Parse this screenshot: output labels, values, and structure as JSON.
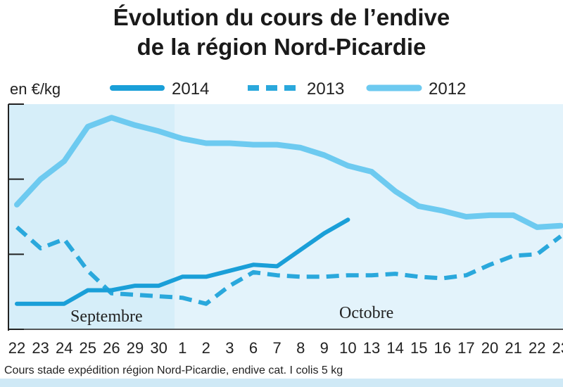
{
  "chart_data": {
    "type": "line",
    "title": [
      "Évolution du cours de l’endive",
      "de la région Nord-Picardie"
    ],
    "ylabel": "en €/kg",
    "ylim": [
      0.5,
      2.0
    ],
    "month_labels": [
      "Septembre",
      "Octobre"
    ],
    "x": [
      "22",
      "23",
      "24",
      "25",
      "26",
      "29",
      "30",
      "1",
      "2",
      "3",
      "6",
      "7",
      "8",
      "9",
      "10",
      "13",
      "14",
      "15",
      "16",
      "17",
      "20",
      "21",
      "22",
      "23"
    ],
    "series": [
      {
        "name": "2014",
        "style": "solid-thick",
        "color": "#1a9fd8",
        "values": [
          0.67,
          0.67,
          0.67,
          0.76,
          0.76,
          0.79,
          0.79,
          0.85,
          0.85,
          0.89,
          0.93,
          0.92,
          1.03,
          1.14,
          1.23,
          null,
          null,
          null,
          null,
          null,
          null,
          null,
          null,
          null
        ]
      },
      {
        "name": "2013",
        "style": "dashed",
        "color": "#2aa8dc",
        "values": [
          1.18,
          1.04,
          1.1,
          0.89,
          0.74,
          0.73,
          0.72,
          0.71,
          0.67,
          0.79,
          0.88,
          0.86,
          0.85,
          0.85,
          0.86,
          0.86,
          0.87,
          0.85,
          0.84,
          0.86,
          0.93,
          0.99,
          1.0,
          1.12
        ]
      },
      {
        "name": "2012",
        "style": "solid-light",
        "color": "#6dcaf0",
        "values": [
          1.33,
          1.5,
          1.62,
          1.85,
          1.91,
          1.86,
          1.82,
          1.77,
          1.74,
          1.74,
          1.73,
          1.73,
          1.71,
          1.66,
          1.59,
          1.55,
          1.42,
          1.32,
          1.29,
          1.25,
          1.26,
          1.26,
          1.18,
          1.19
        ]
      }
    ],
    "footnote": "Cours stade expédition région Nord-Picardie, endive cat. I colis 5 kg",
    "grid": false,
    "legend_position": "top"
  }
}
